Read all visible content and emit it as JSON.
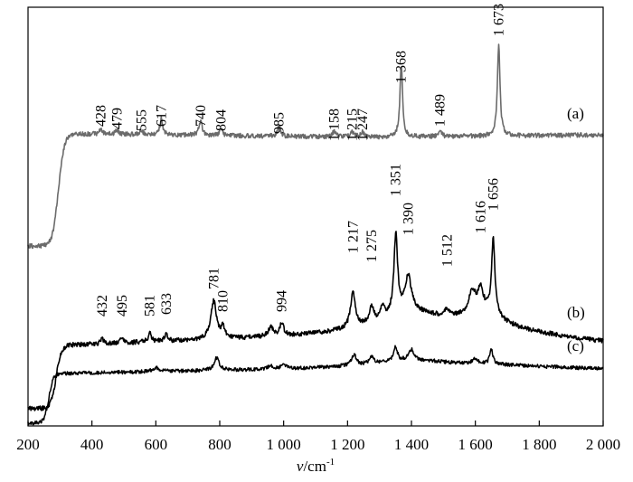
{
  "chart_data": {
    "type": "line",
    "title": "",
    "xlabel": "v/cm-1",
    "xlabel_parts": {
      "symbol": "v",
      "unit": "/cm",
      "exponent": "-1"
    },
    "ylabel": "",
    "xlim": [
      200,
      2000
    ],
    "xticks": [
      200,
      400,
      600,
      800,
      1000,
      1200,
      1400,
      1600,
      1800,
      2000
    ],
    "xtick_labels": [
      "200",
      "400",
      "600",
      "800",
      "1 000",
      "1 200",
      "1 400",
      "1 600",
      "1 800",
      "2 000"
    ],
    "yaxis_shown": false,
    "grid": false,
    "legend": "none",
    "series": [
      {
        "name": "(a)",
        "color": "#6b6b6b",
        "peaks": [
          {
            "x": 428,
            "label": "428"
          },
          {
            "x": 479,
            "label": "479"
          },
          {
            "x": 555,
            "label": "555"
          },
          {
            "x": 617,
            "label": "617"
          },
          {
            "x": 740,
            "label": "740"
          },
          {
            "x": 804,
            "label": "804"
          },
          {
            "x": 985,
            "label": "985"
          },
          {
            "x": 1158,
            "label": "1 158"
          },
          {
            "x": 1215,
            "label": "1 215"
          },
          {
            "x": 1247,
            "label": "1 247"
          },
          {
            "x": 1368,
            "label": "1 368"
          },
          {
            "x": 1489,
            "label": "1 489"
          },
          {
            "x": 1673,
            "label": "1 673"
          }
        ]
      },
      {
        "name": "(b)",
        "color": "#000000",
        "peaks": [
          {
            "x": 432,
            "label": "432"
          },
          {
            "x": 495,
            "label": "495"
          },
          {
            "x": 581,
            "label": "581"
          },
          {
            "x": 633,
            "label": "633"
          },
          {
            "x": 781,
            "label": "781"
          },
          {
            "x": 810,
            "label": "810"
          },
          {
            "x": 994,
            "label": "994"
          },
          {
            "x": 1217,
            "label": "1 217"
          },
          {
            "x": 1275,
            "label": "1 275"
          },
          {
            "x": 1351,
            "label": "1 351"
          },
          {
            "x": 1390,
            "label": "1 390"
          },
          {
            "x": 1512,
            "label": "1 512"
          },
          {
            "x": 1616,
            "label": "1 616"
          },
          {
            "x": 1656,
            "label": "1 656"
          }
        ]
      },
      {
        "name": "(c)",
        "color": "#000000",
        "peaks": []
      }
    ]
  }
}
